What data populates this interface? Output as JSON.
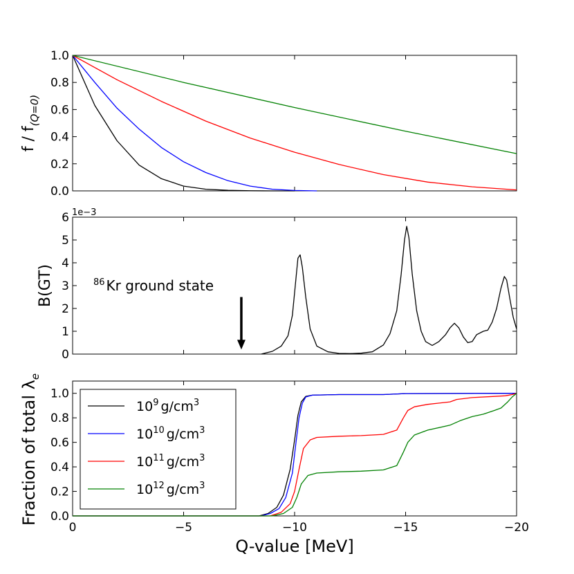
{
  "figure": {
    "xlabel": "Q-value [MeV]",
    "x_tick_labels": [
      "0",
      "−5",
      "−10",
      "−15",
      "−20"
    ]
  },
  "chart_data": [
    {
      "type": "line",
      "panel": "top",
      "ylabel_main": "f / f",
      "ylabel_sub": "(Q=0)",
      "xlim": [
        0,
        -20
      ],
      "ylim": [
        0,
        1.0
      ],
      "y_tick_labels": [
        "0.0",
        "0.2",
        "0.4",
        "0.6",
        "0.8",
        "1.0"
      ],
      "series": [
        {
          "name": "10^9 g/cm^3",
          "color": "#000000",
          "x": [
            0,
            -1,
            -2,
            -3,
            -4,
            -5,
            -6,
            -7,
            -8,
            -9,
            -10
          ],
          "y": [
            1.0,
            0.63,
            0.37,
            0.19,
            0.09,
            0.035,
            0.012,
            0.004,
            0.001,
            0.0,
            0.0
          ]
        },
        {
          "name": "10^10 g/cm^3",
          "color": "#0000ff",
          "x": [
            0,
            -1,
            -2,
            -3,
            -4,
            -5,
            -6,
            -7,
            -8,
            -9,
            -10,
            -11
          ],
          "y": [
            1.0,
            0.8,
            0.61,
            0.455,
            0.32,
            0.215,
            0.135,
            0.075,
            0.035,
            0.012,
            0.003,
            0.0
          ]
        },
        {
          "name": "10^11 g/cm^3",
          "color": "#ff0000",
          "x": [
            0,
            -2,
            -4,
            -6,
            -8,
            -10,
            -12,
            -14,
            -16,
            -18,
            -20
          ],
          "y": [
            1.0,
            0.82,
            0.66,
            0.515,
            0.39,
            0.285,
            0.195,
            0.12,
            0.065,
            0.03,
            0.007
          ]
        },
        {
          "name": "10^12 g/cm^3",
          "color": "#008000",
          "x": [
            0,
            -5,
            -10,
            -15,
            -20
          ],
          "y": [
            1.0,
            0.8,
            0.615,
            0.44,
            0.275
          ]
        }
      ]
    },
    {
      "type": "line",
      "panel": "middle",
      "ylabel": "B(GT)",
      "scale_label": "1e−3",
      "xlim": [
        0,
        -20
      ],
      "ylim": [
        0,
        6
      ],
      "y_tick_labels": [
        "0",
        "1",
        "2",
        "3",
        "4",
        "5",
        "6"
      ],
      "annotation": {
        "sup": "86",
        "text": "Kr ground state",
        "x": -7.6,
        "y_head": 0.2,
        "y_tail": 2.5
      },
      "series": [
        {
          "name": "B(GT)",
          "color": "#000000",
          "x": [
            -8.5,
            -9.0,
            -9.4,
            -9.7,
            -9.9,
            -10.05,
            -10.15,
            -10.25,
            -10.35,
            -10.5,
            -10.7,
            -11.0,
            -11.5,
            -12.0,
            -12.5,
            -13.0,
            -13.5,
            -14.0,
            -14.3,
            -14.6,
            -14.8,
            -14.95,
            -15.05,
            -15.15,
            -15.3,
            -15.5,
            -15.7,
            -15.9,
            -16.2,
            -16.5,
            -16.8,
            -17.0,
            -17.2,
            -17.4,
            -17.6,
            -17.8,
            -18.0,
            -18.2,
            -18.5,
            -18.7,
            -18.9,
            -19.1,
            -19.3,
            -19.45,
            -19.55,
            -19.7,
            -19.85,
            -20.0
          ],
          "y": [
            0.0,
            0.12,
            0.35,
            0.8,
            1.7,
            3.2,
            4.2,
            4.35,
            3.8,
            2.5,
            1.1,
            0.35,
            0.1,
            0.03,
            0.02,
            0.04,
            0.1,
            0.4,
            0.9,
            1.9,
            3.5,
            5.0,
            5.6,
            5.1,
            3.5,
            1.9,
            1.0,
            0.55,
            0.38,
            0.55,
            0.85,
            1.15,
            1.35,
            1.15,
            0.75,
            0.5,
            0.55,
            0.85,
            1.0,
            1.05,
            1.4,
            2.0,
            2.9,
            3.4,
            3.25,
            2.4,
            1.6,
            1.1
          ]
        }
      ]
    },
    {
      "type": "line",
      "panel": "bottom",
      "ylabel": "Fraction of total λ",
      "ylabel_sub": "e",
      "xlim": [
        0,
        -20
      ],
      "ylim": [
        0,
        1.1
      ],
      "y_tick_labels": [
        "0.0",
        "0.2",
        "0.4",
        "0.6",
        "0.8",
        "1.0"
      ],
      "legend": {
        "placement": "top-left"
      },
      "series": [
        {
          "name": "10^9 g/cm^3",
          "label_base": "10",
          "label_exp": "9",
          "label_unit": "g/cm",
          "label_unit_exp": "3",
          "color": "#000000",
          "x": [
            0,
            -8.4,
            -8.8,
            -9.2,
            -9.5,
            -9.8,
            -10.0,
            -10.15,
            -10.3,
            -10.5,
            -10.8,
            -12,
            -14,
            -15,
            -20
          ],
          "y": [
            0,
            0,
            0.02,
            0.07,
            0.17,
            0.38,
            0.62,
            0.82,
            0.93,
            0.975,
            0.985,
            0.99,
            0.99,
            0.998,
            1.0
          ]
        },
        {
          "name": "10^10 g/cm^3",
          "label_base": "10",
          "label_exp": "10",
          "label_unit": "g/cm",
          "label_unit_exp": "3",
          "color": "#0000ff",
          "x": [
            0,
            -8.5,
            -8.9,
            -9.3,
            -9.6,
            -9.9,
            -10.05,
            -10.2,
            -10.35,
            -10.5,
            -10.8,
            -12,
            -14,
            -15,
            -20
          ],
          "y": [
            0,
            0,
            0.02,
            0.06,
            0.15,
            0.35,
            0.58,
            0.8,
            0.92,
            0.97,
            0.985,
            0.99,
            0.99,
            0.998,
            1.0
          ]
        },
        {
          "name": "10^11 g/cm^3",
          "label_base": "10",
          "label_exp": "11",
          "label_unit": "g/cm",
          "label_unit_exp": "3",
          "color": "#ff0000",
          "x": [
            0,
            -8.9,
            -9.4,
            -9.8,
            -10.0,
            -10.2,
            -10.4,
            -10.7,
            -11.0,
            -12.0,
            -13.0,
            -14.0,
            -14.6,
            -14.9,
            -15.1,
            -15.4,
            -16.0,
            -17.0,
            -17.3,
            -18.0,
            -19.0,
            -19.5,
            -19.8,
            -20.0
          ],
          "y": [
            0,
            0,
            0.03,
            0.1,
            0.2,
            0.38,
            0.55,
            0.62,
            0.64,
            0.65,
            0.655,
            0.665,
            0.7,
            0.8,
            0.86,
            0.89,
            0.91,
            0.93,
            0.95,
            0.965,
            0.975,
            0.98,
            0.99,
            1.0
          ]
        },
        {
          "name": "10^12 g/cm^3",
          "label_base": "10",
          "label_exp": "12",
          "label_unit": "g/cm",
          "label_unit_exp": "3",
          "color": "#008000",
          "x": [
            0,
            -9.0,
            -9.5,
            -9.9,
            -10.1,
            -10.3,
            -10.6,
            -11.0,
            -12.0,
            -13.0,
            -14.0,
            -14.6,
            -14.9,
            -15.1,
            -15.4,
            -16.0,
            -17.0,
            -17.5,
            -18.0,
            -18.5,
            -19.0,
            -19.3,
            -19.6,
            -19.8,
            -20.0
          ],
          "y": [
            0,
            0,
            0.02,
            0.07,
            0.15,
            0.26,
            0.33,
            0.35,
            0.36,
            0.365,
            0.375,
            0.41,
            0.52,
            0.6,
            0.66,
            0.7,
            0.74,
            0.78,
            0.81,
            0.83,
            0.86,
            0.88,
            0.93,
            0.97,
            1.0
          ]
        }
      ]
    }
  ]
}
